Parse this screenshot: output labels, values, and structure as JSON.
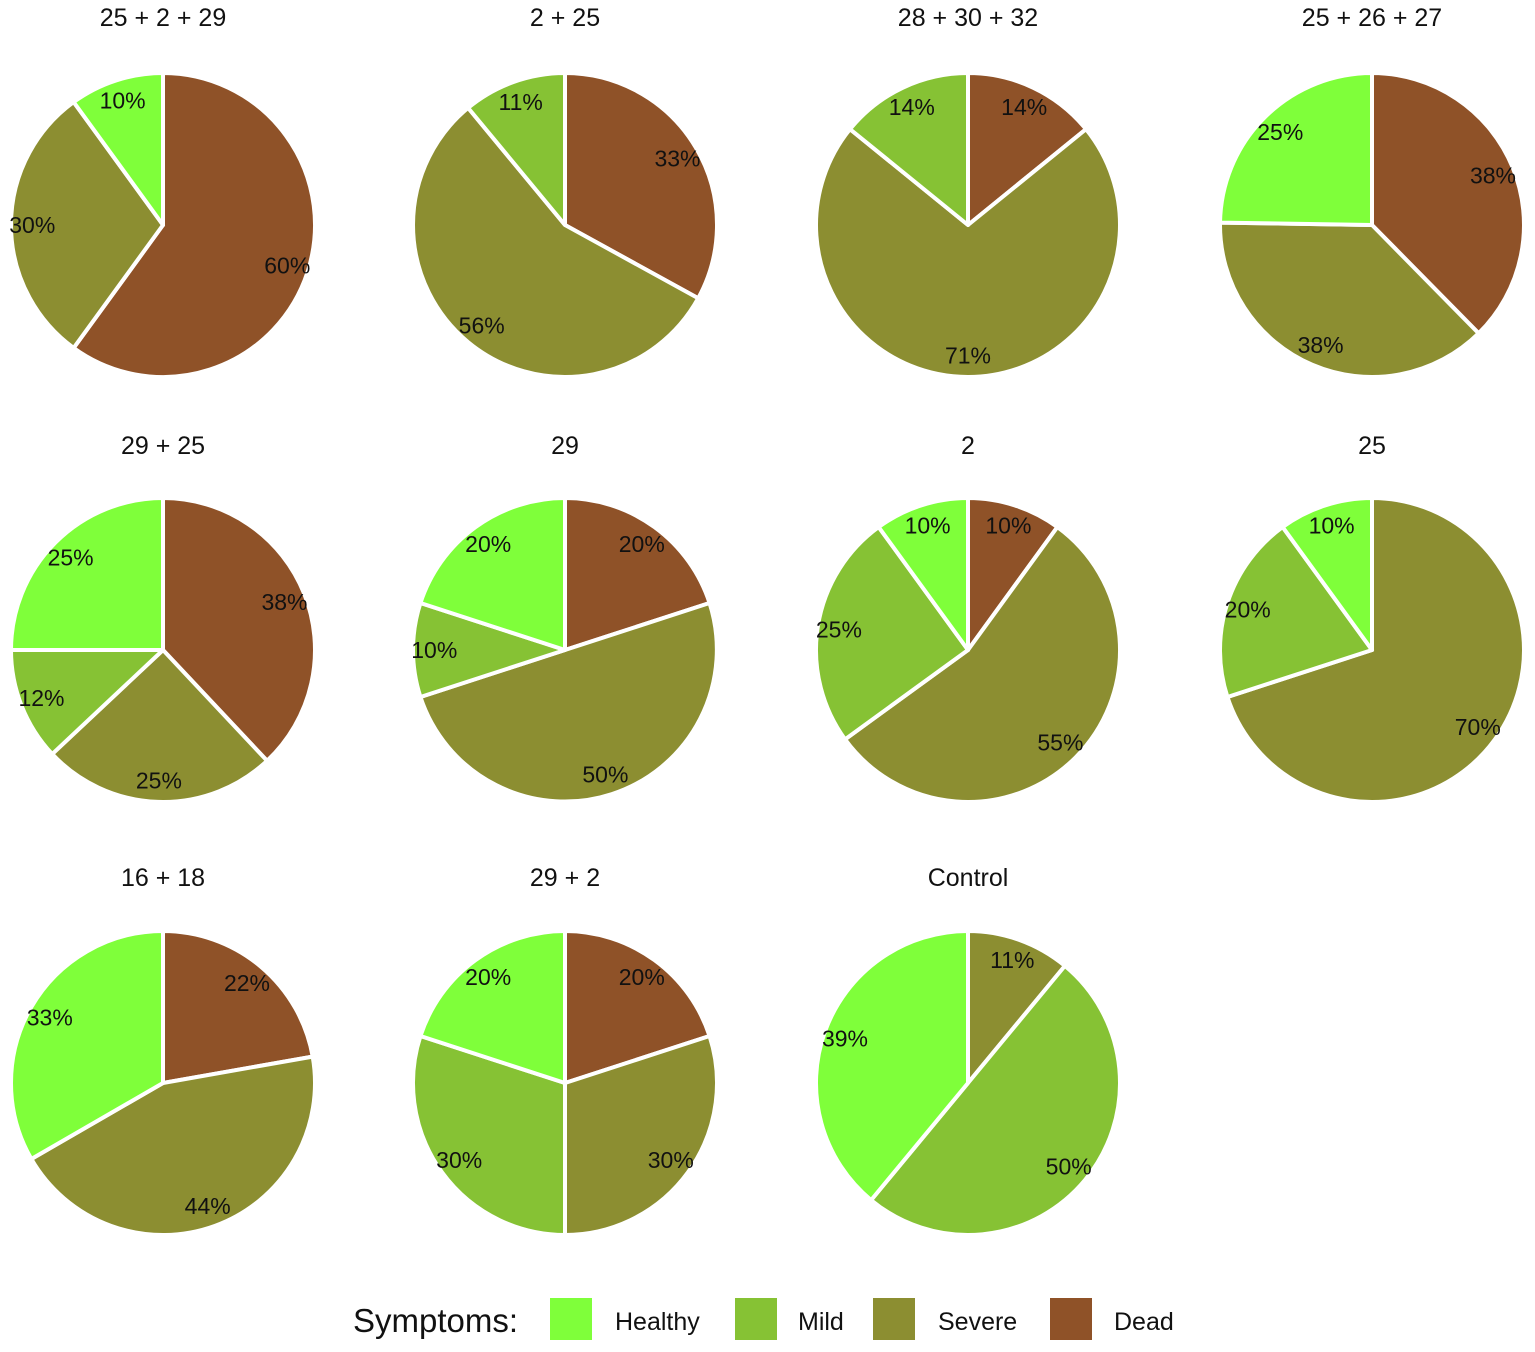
{
  "colors": {
    "Healthy": "#7FFF3A",
    "Mild": "#86C234",
    "Severe": "#8C8E31",
    "Dead": "#8F5228"
  },
  "legend": {
    "title": "Symptoms:",
    "items": [
      "Healthy",
      "Mild",
      "Severe",
      "Dead"
    ]
  },
  "chart_data": [
    {
      "type": "pie",
      "title": "25 + 2 + 29",
      "slices": [
        {
          "category": "Dead",
          "value": 60,
          "label": "60%"
        },
        {
          "category": "Severe",
          "value": 30,
          "label": "30%"
        },
        {
          "category": "Healthy",
          "value": 10,
          "label": "10%"
        }
      ]
    },
    {
      "type": "pie",
      "title": "2 + 25",
      "slices": [
        {
          "category": "Dead",
          "value": 33,
          "label": "33%"
        },
        {
          "category": "Severe",
          "value": 56,
          "label": "56%"
        },
        {
          "category": "Mild",
          "value": 11,
          "label": "11%"
        }
      ]
    },
    {
      "type": "pie",
      "title": "28 + 30 + 32",
      "slices": [
        {
          "category": "Dead",
          "value": 14,
          "label": "14%"
        },
        {
          "category": "Severe",
          "value": 71,
          "label": "71%"
        },
        {
          "category": "Mild",
          "value": 14,
          "label": "14%"
        }
      ]
    },
    {
      "type": "pie",
      "title": "25 + 26 + 27",
      "slices": [
        {
          "category": "Dead",
          "value": 38,
          "label": "38%"
        },
        {
          "category": "Severe",
          "value": 38,
          "label": "38%"
        },
        {
          "category": "Healthy",
          "value": 25,
          "label": "25%"
        }
      ]
    },
    {
      "type": "pie",
      "title": "29 + 25",
      "slices": [
        {
          "category": "Dead",
          "value": 38,
          "label": "38%"
        },
        {
          "category": "Severe",
          "value": 25,
          "label": "25%"
        },
        {
          "category": "Mild",
          "value": 12,
          "label": "12%"
        },
        {
          "category": "Healthy",
          "value": 25,
          "label": "25%"
        }
      ]
    },
    {
      "type": "pie",
      "title": "29",
      "slices": [
        {
          "category": "Dead",
          "value": 20,
          "label": "20%"
        },
        {
          "category": "Severe",
          "value": 50,
          "label": "50%"
        },
        {
          "category": "Mild",
          "value": 10,
          "label": "10%"
        },
        {
          "category": "Healthy",
          "value": 20,
          "label": "20%"
        }
      ]
    },
    {
      "type": "pie",
      "title": "2",
      "slices": [
        {
          "category": "Dead",
          "value": 10,
          "label": "10%"
        },
        {
          "category": "Severe",
          "value": 55,
          "label": "55%"
        },
        {
          "category": "Mild",
          "value": 25,
          "label": "25%"
        },
        {
          "category": "Healthy",
          "value": 10,
          "label": "10%"
        }
      ]
    },
    {
      "type": "pie",
      "title": "25",
      "slices": [
        {
          "category": "Severe",
          "value": 70,
          "label": "70%"
        },
        {
          "category": "Mild",
          "value": 20,
          "label": "20%"
        },
        {
          "category": "Healthy",
          "value": 10,
          "label": "10%"
        }
      ]
    },
    {
      "type": "pie",
      "title": "16 + 18",
      "slices": [
        {
          "category": "Dead",
          "value": 22,
          "label": "22%"
        },
        {
          "category": "Severe",
          "value": 44,
          "label": "44%"
        },
        {
          "category": "Healthy",
          "value": 33,
          "label": "33%"
        }
      ]
    },
    {
      "type": "pie",
      "title": "29 + 2",
      "slices": [
        {
          "category": "Dead",
          "value": 20,
          "label": "20%"
        },
        {
          "category": "Severe",
          "value": 30,
          "label": "30%"
        },
        {
          "category": "Mild",
          "value": 30,
          "label": "30%"
        },
        {
          "category": "Healthy",
          "value": 20,
          "label": "20%"
        }
      ]
    },
    {
      "type": "pie",
      "title": "Control",
      "slices": [
        {
          "category": "Severe",
          "value": 11,
          "label": "11%"
        },
        {
          "category": "Mild",
          "value": 50,
          "label": "50%"
        },
        {
          "category": "Healthy",
          "value": 39,
          "label": "39%"
        }
      ]
    }
  ]
}
